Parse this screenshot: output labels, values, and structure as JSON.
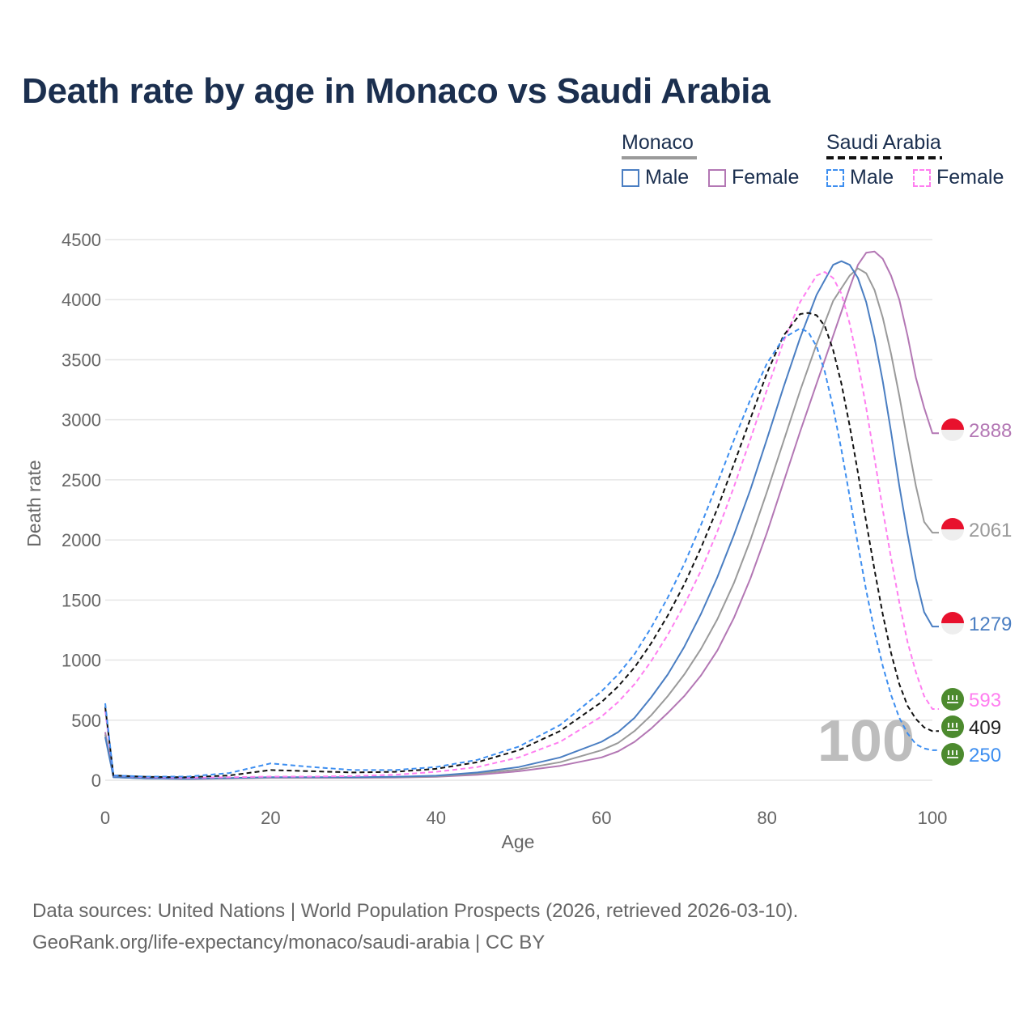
{
  "title": "Death rate by age in Monaco vs Saudi Arabia",
  "legend": {
    "groups": [
      {
        "name": "Monaco",
        "underline_color": "#9a9a9a",
        "items": [
          {
            "label": "Male",
            "color": "#4a7ec2",
            "style": "solid"
          },
          {
            "label": "Female",
            "color": "#b377b4",
            "style": "solid"
          }
        ]
      },
      {
        "name": "Saudi Arabia",
        "underline_color": "#111111",
        "items": [
          {
            "label": "Male",
            "color": "#3d8ef0",
            "style": "dashed"
          },
          {
            "label": "Female",
            "color": "#ff7ef0",
            "style": "dashed"
          }
        ]
      }
    ]
  },
  "year_watermark": "100",
  "source": {
    "line1": "Data sources: United Nations | World Population Prospects (2026, retrieved 2026-03-10).",
    "line2": "GeoRank.org/life-expectancy/monaco/saudi-arabia | CC BY"
  },
  "chart_data": {
    "type": "line",
    "title": "Death rate by age in Monaco vs Saudi Arabia",
    "xlabel": "Age",
    "ylabel": "Death rate",
    "xlim": [
      0,
      100
    ],
    "ylim": [
      0,
      4500
    ],
    "xticks": [
      0,
      20,
      40,
      60,
      80,
      100
    ],
    "yticks": [
      0,
      500,
      1000,
      1500,
      2000,
      2500,
      3000,
      3500,
      4000,
      4500
    ],
    "grid": true,
    "series": [
      {
        "name": "Monaco Female",
        "country": "Monaco",
        "color": "#b377b4",
        "dash": false,
        "end_label": "2888",
        "points": [
          [
            0,
            400
          ],
          [
            1,
            25
          ],
          [
            5,
            15
          ],
          [
            10,
            10
          ],
          [
            15,
            15
          ],
          [
            20,
            20
          ],
          [
            25,
            20
          ],
          [
            30,
            20
          ],
          [
            35,
            22
          ],
          [
            40,
            28
          ],
          [
            45,
            45
          ],
          [
            50,
            75
          ],
          [
            55,
            120
          ],
          [
            60,
            190
          ],
          [
            62,
            240
          ],
          [
            64,
            320
          ],
          [
            66,
            430
          ],
          [
            68,
            560
          ],
          [
            70,
            700
          ],
          [
            72,
            870
          ],
          [
            74,
            1080
          ],
          [
            76,
            1350
          ],
          [
            78,
            1680
          ],
          [
            80,
            2060
          ],
          [
            82,
            2480
          ],
          [
            84,
            2900
          ],
          [
            86,
            3300
          ],
          [
            88,
            3700
          ],
          [
            90,
            4100
          ],
          [
            91,
            4290
          ],
          [
            92,
            4390
          ],
          [
            93,
            4400
          ],
          [
            94,
            4340
          ],
          [
            95,
            4200
          ],
          [
            96,
            4000
          ],
          [
            97,
            3700
          ],
          [
            98,
            3350
          ],
          [
            99,
            3100
          ],
          [
            100,
            2888
          ]
        ]
      },
      {
        "name": "Combined",
        "country": "Monaco",
        "color": "#9a9a9a",
        "dash": false,
        "end_label": "2061",
        "points": [
          [
            0,
            380
          ],
          [
            1,
            25
          ],
          [
            5,
            15
          ],
          [
            10,
            12
          ],
          [
            15,
            15
          ],
          [
            20,
            22
          ],
          [
            25,
            22
          ],
          [
            30,
            22
          ],
          [
            35,
            25
          ],
          [
            40,
            32
          ],
          [
            45,
            55
          ],
          [
            50,
            90
          ],
          [
            55,
            150
          ],
          [
            60,
            250
          ],
          [
            62,
            310
          ],
          [
            64,
            410
          ],
          [
            66,
            540
          ],
          [
            68,
            700
          ],
          [
            70,
            880
          ],
          [
            72,
            1090
          ],
          [
            74,
            1340
          ],
          [
            76,
            1640
          ],
          [
            78,
            2000
          ],
          [
            80,
            2400
          ],
          [
            82,
            2820
          ],
          [
            84,
            3240
          ],
          [
            86,
            3630
          ],
          [
            88,
            3990
          ],
          [
            90,
            4200
          ],
          [
            91,
            4260
          ],
          [
            92,
            4220
          ],
          [
            93,
            4080
          ],
          [
            94,
            3850
          ],
          [
            95,
            3550
          ],
          [
            96,
            3200
          ],
          [
            97,
            2820
          ],
          [
            98,
            2450
          ],
          [
            99,
            2150
          ],
          [
            100,
            2061
          ]
        ]
      },
      {
        "name": "Monaco Male",
        "country": "Monaco",
        "color": "#4a7ec2",
        "dash": false,
        "end_label": "1279",
        "points": [
          [
            0,
            360
          ],
          [
            1,
            25
          ],
          [
            5,
            15
          ],
          [
            10,
            12
          ],
          [
            15,
            18
          ],
          [
            20,
            25
          ],
          [
            25,
            25
          ],
          [
            30,
            25
          ],
          [
            35,
            28
          ],
          [
            40,
            38
          ],
          [
            45,
            65
          ],
          [
            50,
            110
          ],
          [
            55,
            190
          ],
          [
            60,
            320
          ],
          [
            62,
            400
          ],
          [
            64,
            520
          ],
          [
            66,
            690
          ],
          [
            68,
            880
          ],
          [
            70,
            1110
          ],
          [
            72,
            1380
          ],
          [
            74,
            1690
          ],
          [
            76,
            2040
          ],
          [
            78,
            2420
          ],
          [
            80,
            2840
          ],
          [
            82,
            3270
          ],
          [
            84,
            3680
          ],
          [
            86,
            4040
          ],
          [
            88,
            4290
          ],
          [
            89,
            4320
          ],
          [
            90,
            4290
          ],
          [
            91,
            4180
          ],
          [
            92,
            3980
          ],
          [
            93,
            3680
          ],
          [
            94,
            3320
          ],
          [
            95,
            2900
          ],
          [
            96,
            2450
          ],
          [
            97,
            2050
          ],
          [
            98,
            1680
          ],
          [
            99,
            1400
          ],
          [
            100,
            1279
          ]
        ]
      },
      {
        "name": "Saudi Arabia Female",
        "country": "Saudi Arabia",
        "color": "#ff7ef0",
        "dash": true,
        "end_label": "593",
        "points": [
          [
            0,
            580
          ],
          [
            1,
            40
          ],
          [
            5,
            25
          ],
          [
            10,
            20
          ],
          [
            15,
            25
          ],
          [
            20,
            30
          ],
          [
            25,
            30
          ],
          [
            30,
            35
          ],
          [
            35,
            45
          ],
          [
            40,
            70
          ],
          [
            45,
            110
          ],
          [
            50,
            190
          ],
          [
            55,
            320
          ],
          [
            60,
            530
          ],
          [
            62,
            650
          ],
          [
            64,
            800
          ],
          [
            66,
            990
          ],
          [
            68,
            1210
          ],
          [
            70,
            1460
          ],
          [
            72,
            1740
          ],
          [
            74,
            2070
          ],
          [
            76,
            2440
          ],
          [
            78,
            2840
          ],
          [
            80,
            3250
          ],
          [
            82,
            3650
          ],
          [
            84,
            3980
          ],
          [
            86,
            4200
          ],
          [
            87,
            4230
          ],
          [
            88,
            4180
          ],
          [
            89,
            4050
          ],
          [
            90,
            3800
          ],
          [
            91,
            3480
          ],
          [
            92,
            3100
          ],
          [
            93,
            2680
          ],
          [
            94,
            2250
          ],
          [
            95,
            1850
          ],
          [
            96,
            1480
          ],
          [
            97,
            1150
          ],
          [
            98,
            900
          ],
          [
            99,
            700
          ],
          [
            100,
            593
          ]
        ]
      },
      {
        "name": "Saudi Arabia Combined",
        "country": "Saudi Arabia",
        "color": "#111111",
        "dash": true,
        "end_label": "409",
        "points": [
          [
            0,
            610
          ],
          [
            1,
            40
          ],
          [
            5,
            28
          ],
          [
            10,
            25
          ],
          [
            15,
            40
          ],
          [
            20,
            85
          ],
          [
            25,
            75
          ],
          [
            30,
            65
          ],
          [
            35,
            70
          ],
          [
            40,
            95
          ],
          [
            45,
            150
          ],
          [
            50,
            250
          ],
          [
            55,
            410
          ],
          [
            60,
            650
          ],
          [
            62,
            780
          ],
          [
            64,
            940
          ],
          [
            66,
            1140
          ],
          [
            68,
            1370
          ],
          [
            70,
            1630
          ],
          [
            72,
            1930
          ],
          [
            74,
            2260
          ],
          [
            76,
            2630
          ],
          [
            78,
            3010
          ],
          [
            80,
            3390
          ],
          [
            82,
            3700
          ],
          [
            84,
            3880
          ],
          [
            85,
            3890
          ],
          [
            86,
            3870
          ],
          [
            87,
            3780
          ],
          [
            88,
            3580
          ],
          [
            89,
            3300
          ],
          [
            90,
            2950
          ],
          [
            91,
            2560
          ],
          [
            92,
            2150
          ],
          [
            93,
            1750
          ],
          [
            94,
            1380
          ],
          [
            95,
            1060
          ],
          [
            96,
            800
          ],
          [
            97,
            620
          ],
          [
            98,
            510
          ],
          [
            99,
            440
          ],
          [
            100,
            409
          ]
        ]
      },
      {
        "name": "Saudi Arabia Male",
        "country": "Saudi Arabia",
        "color": "#3d8ef0",
        "dash": true,
        "end_label": "250",
        "points": [
          [
            0,
            640
          ],
          [
            1,
            40
          ],
          [
            5,
            30
          ],
          [
            10,
            30
          ],
          [
            15,
            60
          ],
          [
            20,
            140
          ],
          [
            25,
            110
          ],
          [
            30,
            85
          ],
          [
            35,
            85
          ],
          [
            40,
            110
          ],
          [
            45,
            170
          ],
          [
            50,
            280
          ],
          [
            55,
            460
          ],
          [
            60,
            740
          ],
          [
            62,
            880
          ],
          [
            64,
            1050
          ],
          [
            66,
            1270
          ],
          [
            68,
            1520
          ],
          [
            70,
            1800
          ],
          [
            72,
            2120
          ],
          [
            74,
            2470
          ],
          [
            76,
            2830
          ],
          [
            78,
            3170
          ],
          [
            80,
            3470
          ],
          [
            82,
            3680
          ],
          [
            84,
            3760
          ],
          [
            85,
            3730
          ],
          [
            86,
            3610
          ],
          [
            87,
            3400
          ],
          [
            88,
            3100
          ],
          [
            89,
            2750
          ],
          [
            90,
            2360
          ],
          [
            91,
            1960
          ],
          [
            92,
            1580
          ],
          [
            93,
            1240
          ],
          [
            94,
            950
          ],
          [
            95,
            710
          ],
          [
            96,
            520
          ],
          [
            97,
            390
          ],
          [
            98,
            300
          ],
          [
            99,
            265
          ],
          [
            100,
            250
          ]
        ]
      }
    ]
  }
}
